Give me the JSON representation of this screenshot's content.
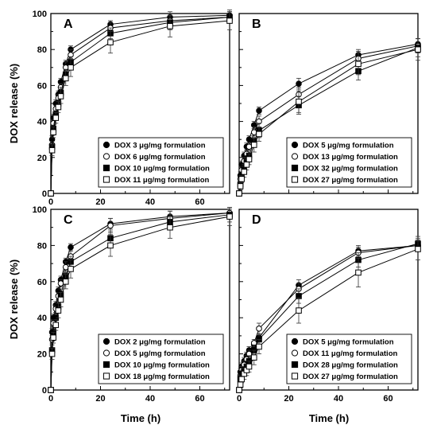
{
  "figure": {
    "ylabel": "DOX release (%)",
    "xlabel": "Time (h)"
  },
  "chart_data": [
    {
      "panel": "A",
      "type": "line",
      "x": [
        0,
        0.5,
        1,
        2,
        3,
        4,
        6,
        8,
        24,
        48,
        72
      ],
      "xlim": [
        0,
        72
      ],
      "ylim": [
        0,
        100
      ],
      "xticks": [
        "0",
        "20",
        "40",
        "60"
      ],
      "yticks": [
        "0",
        "20",
        "40",
        "60",
        "80",
        "100"
      ],
      "legend_position": "bottom-right",
      "series": [
        {
          "name": "DOX 3 μg/mg formulation",
          "marker": "filled-circle",
          "values": [
            0,
            30,
            42,
            50,
            55,
            62,
            72,
            80,
            94,
            98,
            99
          ],
          "err": [
            0,
            2,
            2,
            2,
            2,
            2,
            2,
            2,
            2,
            3,
            3
          ]
        },
        {
          "name": "DOX 6 μg/mg formulation",
          "marker": "open-circle",
          "values": [
            0,
            27,
            39,
            47,
            53,
            59,
            70,
            77,
            92,
            96,
            98
          ],
          "err": [
            0,
            2,
            2,
            2,
            2,
            2,
            3,
            3,
            3,
            3,
            3
          ]
        },
        {
          "name": "DOX 10 μg/mg formulation",
          "marker": "filled-square",
          "values": [
            0,
            26,
            36,
            44,
            50,
            56,
            66,
            73,
            89,
            95,
            98
          ],
          "err": [
            0,
            2,
            2,
            2,
            2,
            3,
            3,
            3,
            3,
            4,
            3
          ]
        },
        {
          "name": "DOX 11 μg/mg formulation",
          "marker": "open-square",
          "values": [
            0,
            24,
            34,
            42,
            48,
            54,
            64,
            70,
            84,
            93,
            96
          ],
          "err": [
            0,
            3,
            3,
            3,
            3,
            4,
            4,
            5,
            6,
            6,
            5
          ]
        }
      ]
    },
    {
      "panel": "B",
      "type": "line",
      "x": [
        0,
        0.5,
        1,
        2,
        3,
        4,
        6,
        8,
        24,
        48,
        72
      ],
      "xlim": [
        0,
        72
      ],
      "ylim": [
        0,
        100
      ],
      "xticks": [],
      "yticks": [],
      "legend_position": "bottom-right",
      "series": [
        {
          "name": "DOX 5 μg/mg formulation",
          "marker": "filled-circle",
          "values": [
            0,
            10,
            16,
            21,
            26,
            30,
            38,
            46,
            61,
            77,
            83
          ],
          "err": [
            0,
            2,
            2,
            2,
            2,
            2,
            2,
            2,
            3,
            3,
            3
          ]
        },
        {
          "name": "DOX 13 μg/mg formulation",
          "marker": "open-circle",
          "values": [
            0,
            8,
            13,
            18,
            22,
            26,
            34,
            40,
            55,
            75,
            82
          ],
          "err": [
            0,
            2,
            2,
            2,
            2,
            2,
            3,
            3,
            4,
            4,
            4
          ]
        },
        {
          "name": "DOX 32 μg/mg formulation",
          "marker": "filled-square",
          "values": [
            0,
            5,
            10,
            14,
            18,
            21,
            29,
            35,
            49,
            68,
            81
          ],
          "err": [
            0,
            2,
            2,
            2,
            3,
            3,
            3,
            4,
            5,
            5,
            5
          ]
        },
        {
          "name": "DOX 27 μg/mg formulation",
          "marker": "open-square",
          "values": [
            0,
            4,
            8,
            12,
            16,
            19,
            27,
            33,
            51,
            72,
            80
          ],
          "err": [
            0,
            2,
            2,
            3,
            3,
            3,
            4,
            4,
            6,
            6,
            6
          ]
        }
      ]
    },
    {
      "panel": "C",
      "type": "line",
      "x": [
        0,
        0.5,
        1,
        2,
        3,
        4,
        6,
        8,
        24,
        48,
        72
      ],
      "xlim": [
        0,
        72
      ],
      "ylim": [
        0,
        100
      ],
      "xticks": [
        "0",
        "20",
        "40",
        "60"
      ],
      "yticks": [
        "0",
        "20",
        "40",
        "60",
        "80",
        "100"
      ],
      "legend_position": "bottom-right",
      "series": [
        {
          "name": "DOX 2 μg/mg formulation",
          "marker": "filled-circle",
          "values": [
            0,
            32,
            40,
            47,
            55,
            61,
            71,
            79,
            92,
            96,
            98
          ],
          "err": [
            0,
            2,
            2,
            2,
            2,
            2,
            2,
            2,
            3,
            3,
            2
          ]
        },
        {
          "name": "DOX 5 μg/mg formulation",
          "marker": "open-circle",
          "values": [
            0,
            28,
            37,
            45,
            52,
            59,
            68,
            74,
            91,
            95,
            98
          ],
          "err": [
            0,
            2,
            2,
            2,
            2,
            2,
            3,
            3,
            4,
            4,
            3
          ]
        },
        {
          "name": "DOX 10 μg/mg formulation",
          "marker": "filled-square",
          "values": [
            0,
            22,
            32,
            40,
            46,
            53,
            63,
            71,
            84,
            93,
            97
          ],
          "err": [
            0,
            3,
            3,
            3,
            3,
            3,
            3,
            3,
            4,
            4,
            4
          ]
        },
        {
          "name": "DOX 18 μg/mg formulation",
          "marker": "open-square",
          "values": [
            0,
            20,
            29,
            36,
            44,
            50,
            60,
            67,
            80,
            90,
            96
          ],
          "err": [
            0,
            3,
            3,
            3,
            4,
            4,
            4,
            5,
            6,
            6,
            5
          ]
        }
      ]
    },
    {
      "panel": "D",
      "type": "line",
      "x": [
        0,
        0.5,
        1,
        2,
        3,
        4,
        6,
        8,
        24,
        48,
        72
      ],
      "xlim": [
        0,
        72
      ],
      "ylim": [
        0,
        100
      ],
      "xticks": [
        "0",
        "20",
        "40",
        "60"
      ],
      "yticks": [],
      "legend_position": "bottom-right",
      "series": [
        {
          "name": "DOX 5 μg/mg formulation",
          "marker": "filled-circle",
          "values": [
            0,
            10,
            13,
            16,
            19,
            22,
            25,
            29,
            58,
            77,
            80
          ],
          "err": [
            0,
            2,
            2,
            2,
            2,
            2,
            2,
            2,
            3,
            3,
            3
          ]
        },
        {
          "name": "DOX 11 μg/mg formulation",
          "marker": "open-circle",
          "values": [
            0,
            8,
            11,
            14,
            17,
            20,
            26,
            34,
            56,
            76,
            80
          ],
          "err": [
            0,
            2,
            2,
            2,
            2,
            2,
            2,
            3,
            3,
            3,
            3
          ]
        },
        {
          "name": "DOX 28 μg/mg formulation",
          "marker": "filled-square",
          "values": [
            0,
            6,
            9,
            11,
            13,
            16,
            22,
            28,
            52,
            72,
            81
          ],
          "err": [
            0,
            2,
            2,
            2,
            3,
            3,
            3,
            3,
            4,
            4,
            4
          ]
        },
        {
          "name": "DOX 27 μg/mg formulation",
          "marker": "open-square",
          "values": [
            0,
            3,
            6,
            9,
            11,
            13,
            18,
            24,
            44,
            65,
            78
          ],
          "err": [
            0,
            2,
            2,
            3,
            3,
            3,
            4,
            4,
            7,
            8,
            6
          ]
        }
      ]
    }
  ]
}
